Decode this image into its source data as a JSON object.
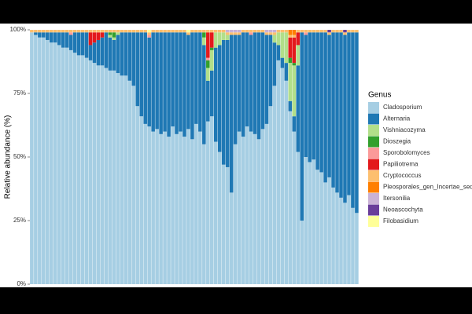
{
  "chart_data": {
    "type": "stacked_bar",
    "y_label": "Relative abundance (%)",
    "legend_title": "Genus",
    "legend_position": "right",
    "categories": [
      null,
      null,
      null,
      null,
      null,
      null,
      null,
      null,
      null,
      null,
      null,
      null,
      null,
      null,
      null,
      null,
      null,
      null,
      null,
      null,
      null,
      null,
      null,
      null,
      null,
      null,
      null,
      null,
      null,
      null,
      null,
      null,
      null,
      null,
      null,
      null,
      null,
      null,
      null,
      null,
      null,
      null,
      null,
      null,
      null,
      null,
      null,
      null,
      null,
      null,
      null,
      null,
      null,
      null,
      null,
      null,
      null,
      null,
      null,
      null,
      null,
      null,
      null,
      null,
      null,
      null,
      null,
      null,
      null,
      null,
      null,
      null,
      null,
      null,
      null,
      null,
      null,
      null,
      null,
      null,
      null,
      null,
      null,
      null
    ],
    "ylim": [
      0,
      100
    ],
    "yticks": [
      {
        "value": 0,
        "label": "0%"
      },
      {
        "value": 25,
        "label": "25%"
      },
      {
        "value": 50,
        "label": "50%"
      },
      {
        "value": 75,
        "label": "75%"
      },
      {
        "value": 100,
        "label": "100%"
      }
    ],
    "series": [
      {
        "name": "Cladosporium",
        "color": "#a6cee3",
        "values": [
          99,
          98,
          97,
          97,
          96,
          95,
          95,
          94,
          93,
          93,
          92,
          91,
          90,
          90,
          89,
          88,
          87,
          86,
          86,
          85,
          84,
          84,
          83,
          82,
          82,
          80,
          78,
          70,
          66,
          63,
          62,
          60,
          61,
          59,
          60,
          58,
          62,
          59,
          60,
          58,
          61,
          57,
          63,
          60,
          55,
          64,
          66,
          56,
          52,
          47,
          46,
          36,
          55,
          60,
          58,
          62,
          60,
          59,
          57,
          61,
          63,
          70,
          78,
          88,
          85,
          80,
          68,
          60,
          52,
          25,
          50,
          48,
          49,
          45,
          44,
          40,
          42,
          38,
          36,
          34,
          32,
          35,
          30,
          28
        ]
      },
      {
        "name": "Alternaria",
        "color": "#1f78b4",
        "values": [
          0,
          1,
          2,
          2,
          3,
          4,
          4,
          5,
          6,
          6,
          6,
          8,
          9,
          9,
          10,
          6,
          8,
          10,
          11,
          14,
          13,
          12,
          15,
          17,
          17,
          19,
          21,
          29,
          33,
          36,
          35,
          39,
          38,
          40,
          39,
          41,
          37,
          40,
          39,
          41,
          37,
          42,
          36,
          39,
          39,
          16,
          18,
          37,
          42,
          49,
          50,
          62,
          43,
          38,
          41,
          37,
          38,
          40,
          42,
          38,
          35,
          28,
          17,
          6,
          4,
          7,
          4,
          6,
          34,
          74,
          48,
          51,
          50,
          54,
          55,
          59,
          56,
          61,
          63,
          65,
          66,
          64,
          69,
          71
        ]
      },
      {
        "name": "Vishniacozyma",
        "color": "#b2df8a",
        "values": [
          0,
          0,
          0,
          0,
          0,
          0,
          0,
          0,
          0,
          0,
          0,
          0,
          0,
          0,
          0,
          0,
          0,
          0,
          0,
          0,
          1,
          1,
          1,
          0,
          0,
          0,
          0,
          0,
          0,
          0,
          0,
          0,
          0,
          0,
          0,
          0,
          0,
          0,
          0,
          0,
          0,
          0,
          0,
          0,
          3,
          5,
          8,
          6,
          5,
          3,
          2,
          0,
          0,
          0,
          0,
          0,
          0,
          0,
          0,
          0,
          0,
          0,
          3,
          5,
          10,
          12,
          15,
          20,
          8,
          0,
          0,
          0,
          0,
          0,
          0,
          0,
          0,
          0,
          0,
          0,
          0,
          0,
          0,
          0
        ]
      },
      {
        "name": "Dioszegia",
        "color": "#33a02c",
        "values": [
          0,
          0,
          0,
          0,
          0,
          0,
          0,
          0,
          0,
          0,
          0,
          0,
          0,
          0,
          0,
          0,
          0,
          0,
          0,
          0,
          1,
          2,
          0,
          0,
          0,
          0,
          0,
          0,
          0,
          0,
          0,
          0,
          0,
          0,
          0,
          0,
          0,
          0,
          0,
          0,
          0,
          0,
          0,
          0,
          2,
          3,
          1,
          0,
          0,
          0,
          0,
          0,
          0,
          0,
          0,
          0,
          0,
          0,
          0,
          0,
          0,
          0,
          0,
          0,
          0,
          0,
          2,
          1,
          0,
          0,
          0,
          0,
          0,
          0,
          0,
          0,
          0,
          0,
          0,
          0,
          0,
          0,
          0,
          0
        ]
      },
      {
        "name": "Sporobolomyces",
        "color": "#fb9a99",
        "values": [
          0,
          0,
          0,
          0,
          0,
          0,
          0,
          0,
          0,
          0,
          1,
          0,
          0,
          0,
          0,
          0,
          0,
          0,
          0,
          0,
          0,
          0,
          0,
          0,
          0,
          0,
          0,
          0,
          0,
          0,
          1,
          0,
          0,
          0,
          0,
          0,
          0,
          0,
          0,
          0,
          0,
          0,
          0,
          0,
          0,
          1,
          0,
          0,
          0,
          0,
          0,
          0,
          0,
          0,
          0,
          0,
          1,
          0,
          0,
          0,
          0,
          0,
          0,
          0,
          0,
          0,
          0,
          0,
          0,
          0,
          1,
          0,
          0,
          0,
          0,
          0,
          0,
          0,
          0,
          0,
          0,
          0,
          0,
          0
        ]
      },
      {
        "name": "Papiliotrema",
        "color": "#e31a1c",
        "values": [
          0,
          0,
          0,
          0,
          0,
          0,
          0,
          0,
          0,
          0,
          0,
          0,
          0,
          0,
          0,
          5,
          4,
          3,
          2,
          0,
          0,
          0,
          0,
          0,
          0,
          0,
          0,
          0,
          0,
          0,
          0,
          0,
          0,
          0,
          0,
          0,
          0,
          0,
          0,
          0,
          0,
          0,
          0,
          0,
          0,
          10,
          6,
          0,
          0,
          0,
          0,
          0,
          0,
          0,
          0,
          0,
          0,
          0,
          0,
          0,
          0,
          0,
          0,
          0,
          0,
          0,
          8,
          10,
          5,
          0,
          0,
          0,
          0,
          0,
          0,
          0,
          0,
          0,
          0,
          0,
          0,
          0,
          0,
          0
        ]
      },
      {
        "name": "Cryptococcus",
        "color": "#fdbf6f",
        "values": [
          1,
          1,
          1,
          1,
          1,
          1,
          1,
          1,
          1,
          1,
          1,
          1,
          1,
          1,
          1,
          1,
          1,
          1,
          1,
          1,
          1,
          1,
          1,
          1,
          1,
          1,
          1,
          1,
          1,
          1,
          1,
          1,
          1,
          1,
          1,
          1,
          1,
          1,
          1,
          1,
          1,
          1,
          1,
          1,
          1,
          1,
          1,
          1,
          1,
          1,
          1,
          1,
          1,
          1,
          1,
          1,
          1,
          1,
          1,
          1,
          1,
          1,
          1,
          1,
          1,
          1,
          1,
          1,
          1,
          1,
          1,
          1,
          1,
          1,
          1,
          1,
          1,
          1,
          1,
          1,
          1,
          1,
          1,
          1
        ]
      },
      {
        "name": "Pleosporales_gen_Incertae_sedis",
        "color": "#ff7f00",
        "values": [
          0,
          0,
          0,
          0,
          0,
          0,
          0,
          0,
          0,
          0,
          0,
          0,
          0,
          0,
          0,
          0,
          0,
          0,
          0,
          0,
          0,
          0,
          0,
          0,
          0,
          0,
          0,
          0,
          0,
          0,
          0,
          0,
          0,
          0,
          0,
          0,
          0,
          0,
          0,
          0,
          0,
          0,
          0,
          0,
          0,
          0,
          0,
          0,
          0,
          0,
          0,
          0,
          0,
          0,
          0,
          0,
          0,
          0,
          0,
          0,
          0,
          0,
          0,
          0,
          0,
          0,
          2,
          2,
          0,
          0,
          0,
          0,
          0,
          0,
          0,
          0,
          0,
          0,
          0,
          0,
          0,
          0,
          0,
          0
        ]
      },
      {
        "name": "Itersonilia",
        "color": "#cab2d6",
        "values": [
          0,
          0,
          0,
          0,
          0,
          0,
          0,
          0,
          0,
          0,
          0,
          0,
          0,
          0,
          0,
          0,
          0,
          0,
          0,
          0,
          0,
          0,
          0,
          0,
          0,
          0,
          0,
          0,
          0,
          0,
          0,
          0,
          0,
          0,
          0,
          0,
          0,
          0,
          0,
          0,
          0,
          0,
          0,
          0,
          0,
          0,
          0,
          0,
          0,
          0,
          1,
          1,
          1,
          1,
          0,
          0,
          0,
          0,
          0,
          0,
          1,
          1,
          1,
          0,
          0,
          0,
          0,
          0,
          0,
          0,
          0,
          0,
          0,
          0,
          0,
          0,
          0,
          0,
          0,
          0,
          0,
          0,
          0,
          0
        ]
      },
      {
        "name": "Neoascochyta",
        "color": "#6a3d9a",
        "values": [
          0,
          0,
          0,
          0,
          0,
          0,
          0,
          0,
          0,
          0,
          0,
          0,
          0,
          0,
          0,
          0,
          0,
          0,
          0,
          0,
          0,
          0,
          0,
          0,
          0,
          0,
          0,
          0,
          0,
          0,
          0,
          0,
          0,
          0,
          0,
          0,
          0,
          0,
          0,
          0,
          0,
          0,
          0,
          0,
          0,
          0,
          0,
          0,
          0,
          0,
          0,
          0,
          0,
          0,
          0,
          0,
          0,
          0,
          0,
          0,
          0,
          0,
          0,
          0,
          0,
          0,
          0,
          0,
          0,
          0,
          0,
          0,
          0,
          0,
          0,
          0,
          1,
          0,
          0,
          0,
          1,
          0,
          0,
          0
        ]
      },
      {
        "name": "Filobasidium",
        "color": "#ffff99",
        "values": [
          0,
          0,
          0,
          0,
          0,
          0,
          0,
          0,
          0,
          0,
          0,
          0,
          0,
          0,
          0,
          0,
          0,
          0,
          0,
          0,
          0,
          0,
          0,
          0,
          0,
          0,
          0,
          0,
          0,
          0,
          1,
          0,
          0,
          0,
          0,
          0,
          0,
          0,
          0,
          0,
          1,
          0,
          0,
          0,
          0,
          0,
          0,
          0,
          0,
          0,
          0,
          0,
          0,
          0,
          0,
          0,
          0,
          0,
          0,
          0,
          0,
          0,
          0,
          0,
          0,
          0,
          0,
          0,
          0,
          0,
          0,
          0,
          0,
          0,
          0,
          0,
          0,
          0,
          0,
          0,
          0,
          0,
          0,
          0
        ]
      }
    ]
  }
}
